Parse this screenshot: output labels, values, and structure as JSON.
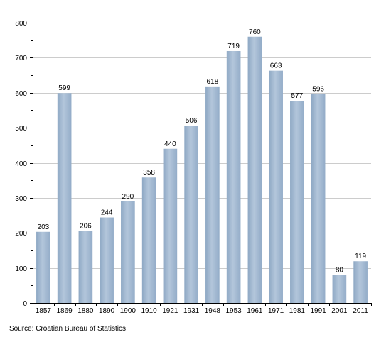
{
  "chart_data": {
    "type": "bar",
    "categories": [
      "1857",
      "1869",
      "1880",
      "1890",
      "1900",
      "1910",
      "1921",
      "1931",
      "1948",
      "1953",
      "1961",
      "1971",
      "1981",
      "1991",
      "2001",
      "2011"
    ],
    "values": [
      203,
      599,
      206,
      244,
      290,
      358,
      440,
      506,
      618,
      719,
      760,
      663,
      577,
      596,
      80,
      119
    ],
    "value_labels": [
      "203",
      "599",
      "206",
      "244",
      "290",
      "358",
      "440",
      "506",
      "618",
      "719",
      "760",
      "663",
      "577",
      "596",
      "80",
      "119"
    ],
    "title": "",
    "xlabel": "",
    "ylabel": "",
    "ylim": [
      0,
      800
    ],
    "yticks": [
      0,
      100,
      200,
      300,
      400,
      500,
      600,
      700,
      800
    ],
    "ytick_labels": [
      "0",
      "100",
      "200",
      "300",
      "400",
      "500",
      "600",
      "700",
      "800"
    ],
    "grid": true,
    "legend": "none",
    "bar_color": "#9fb6cf",
    "bar_highlight": "#bccddf",
    "grid_color": "#cccccc"
  },
  "source": "Source: Croatian Bureau of Statistics"
}
